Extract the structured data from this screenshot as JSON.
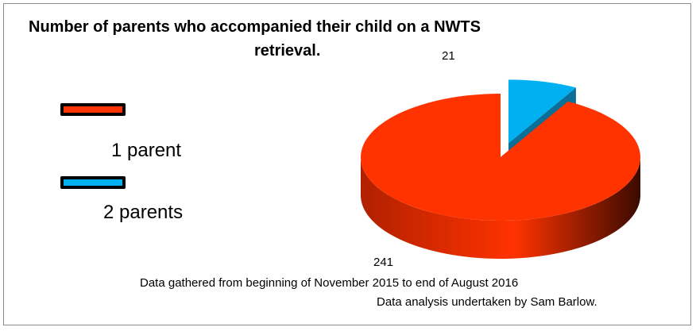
{
  "chart_data": {
    "type": "pie",
    "style": "3d-exploded",
    "title": "Number of parents who accompanied their child on a NWTS retrieval.",
    "categories": [
      "1 parent",
      "2 parents"
    ],
    "values": [
      241,
      21
    ],
    "colors": [
      "#ff3300",
      "#00b0f0"
    ],
    "side_colors": [
      "#b02000",
      "#0a6f99"
    ],
    "data_labels": [
      "241",
      "21"
    ],
    "legend": {
      "position": "left",
      "entries": [
        {
          "label": "1 parent",
          "color": "#ff3300"
        },
        {
          "label": "2 parents",
          "color": "#00b0f0"
        }
      ]
    }
  },
  "title_lines": [
    "Number of parents who accompanied their child on a NWTS",
    "retrieval."
  ],
  "footnotes": [
    "Data gathered from beginning of November 2015 to end of August 2016",
    "Data analysis undertaken by Sam Barlow."
  ]
}
